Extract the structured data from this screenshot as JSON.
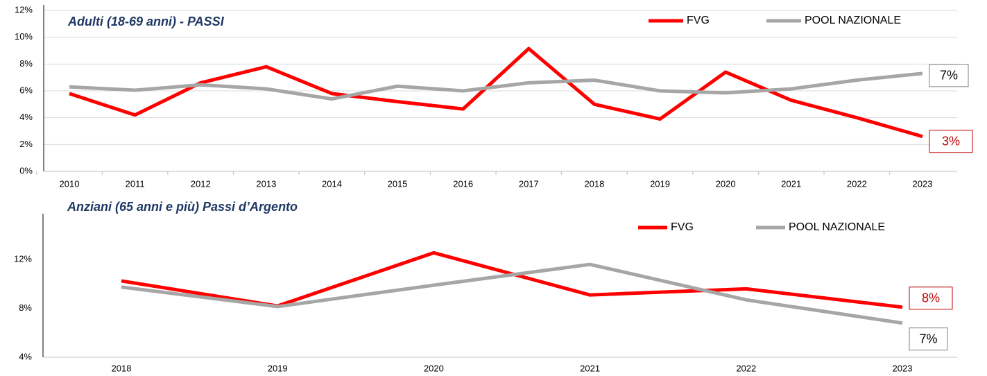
{
  "chart_data": [
    {
      "type": "line",
      "subtitle": "Adulti (18-69 anni) - PASSI",
      "categories": [
        "2010",
        "2011",
        "2012",
        "2013",
        "2014",
        "2015",
        "2016",
        "2017",
        "2018",
        "2019",
        "2020",
        "2021",
        "2022",
        "2023"
      ],
      "series": [
        {
          "name": "FVG",
          "color": "#ff0000",
          "values": [
            5.8,
            4.2,
            6.6,
            7.8,
            5.8,
            5.2,
            4.65,
            9.15,
            5.0,
            3.9,
            7.4,
            5.3,
            4.0,
            2.6
          ],
          "value_labels": [
            null,
            null,
            null,
            null,
            null,
            null,
            null,
            null,
            null,
            null,
            null,
            null,
            null,
            "3%"
          ]
        },
        {
          "name": "POOL NAZIONALE",
          "color": "#a6a6a6",
          "values": [
            6.3,
            6.05,
            6.45,
            6.15,
            5.4,
            6.35,
            6.0,
            6.6,
            6.8,
            6.0,
            5.85,
            6.15,
            6.8,
            7.3
          ],
          "value_labels": [
            null,
            null,
            null,
            null,
            null,
            null,
            null,
            null,
            null,
            null,
            null,
            null,
            null,
            "7%"
          ]
        }
      ],
      "ylim": [
        0,
        12
      ],
      "yticks": [
        {
          "value": 0,
          "label": "0%"
        },
        {
          "value": 2,
          "label": "2%"
        },
        {
          "value": 4,
          "label": "4%"
        },
        {
          "value": 6,
          "label": "6%"
        },
        {
          "value": 8,
          "label": "8%"
        },
        {
          "value": 10,
          "label": "10%"
        },
        {
          "value": 12,
          "label": "12%"
        }
      ],
      "grid": true,
      "legend": "top-right"
    },
    {
      "type": "line",
      "subtitle": "Anziani (65 anni e più) Passi d’Argento",
      "categories": [
        "2018",
        "2019",
        "2020",
        "2021",
        "2022",
        "2023"
      ],
      "series": [
        {
          "name": "FVG",
          "color": "#ff0000",
          "values": [
            10.25,
            8.2,
            12.55,
            9.1,
            9.6,
            8.1
          ],
          "value_labels": [
            null,
            null,
            null,
            null,
            null,
            "8%"
          ]
        },
        {
          "name": "POOL NAZIONALE",
          "color": "#a6a6a6",
          "values": [
            9.75,
            8.15,
            9.9,
            11.6,
            8.7,
            6.8
          ],
          "value_labels": [
            null,
            null,
            null,
            null,
            null,
            "7%"
          ]
        }
      ],
      "ylim": [
        4,
        15.3
      ],
      "yticks": [
        {
          "value": 4,
          "label": "4%"
        },
        {
          "value": 8,
          "label": "8%"
        },
        {
          "value": 12,
          "label": "12%"
        }
      ],
      "grid": false,
      "legend": "top-right"
    }
  ]
}
